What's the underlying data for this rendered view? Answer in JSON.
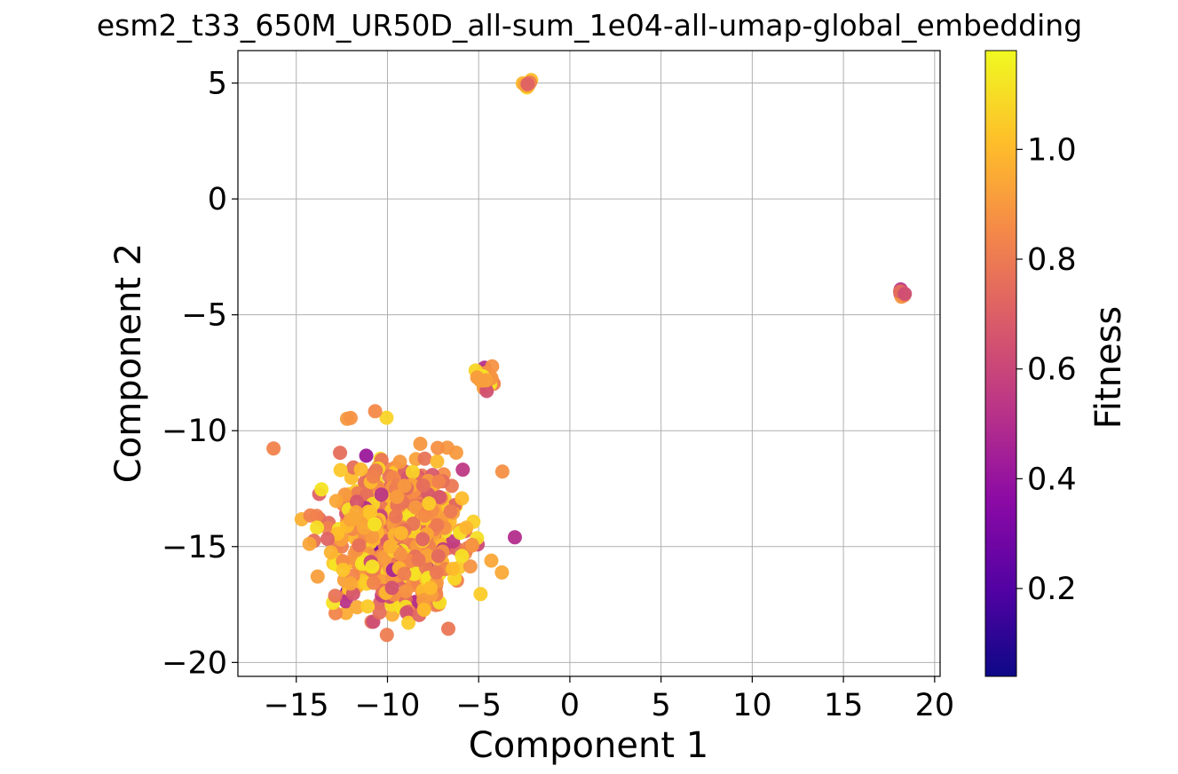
{
  "chart_data": {
    "type": "scatter",
    "title": "esm2_t33_650M_UR50D_all-sum_1e04-all-umap-global_embedding",
    "xlabel": "Component 1",
    "ylabel": "Component 2",
    "xlim": [
      -18.2,
      20.3
    ],
    "ylim": [
      -20.6,
      6.4
    ],
    "xticks": [
      -15,
      -10,
      -5,
      0,
      5,
      10,
      15,
      20
    ],
    "xtick_labels": [
      "−15",
      "−10",
      "−5",
      "0",
      "5",
      "10",
      "15",
      "20"
    ],
    "yticks": [
      5,
      0,
      -5,
      -10,
      -15,
      -20
    ],
    "ytick_labels": [
      "5",
      "0",
      "−5",
      "−10",
      "−15",
      "−20"
    ],
    "grid": true,
    "colormap": "plasma",
    "colorbar": {
      "label": "Fitness",
      "range": [
        0.04,
        1.18
      ],
      "ticks": [
        0.2,
        0.4,
        0.6,
        0.8,
        1.0
      ],
      "tick_labels": [
        "0.2",
        "0.4",
        "0.6",
        "0.8",
        "1.0"
      ]
    },
    "clusters": [
      {
        "center": [
          -9.3,
          -14.4
        ],
        "spread": [
          2.4,
          2.2
        ],
        "count": 650,
        "fitness_mean": 0.9
      },
      {
        "center": [
          -4.6,
          -7.6
        ],
        "spread": [
          0.35,
          0.45
        ],
        "count": 30,
        "fitness_mean": 0.95
      },
      {
        "center": [
          -2.4,
          4.95
        ],
        "spread": [
          0.15,
          0.1
        ],
        "count": 10,
        "fitness_mean": 0.95
      },
      {
        "center": [
          18.2,
          -4.05
        ],
        "spread": [
          0.15,
          0.1
        ],
        "count": 8,
        "fitness_mean": 0.85
      }
    ]
  }
}
